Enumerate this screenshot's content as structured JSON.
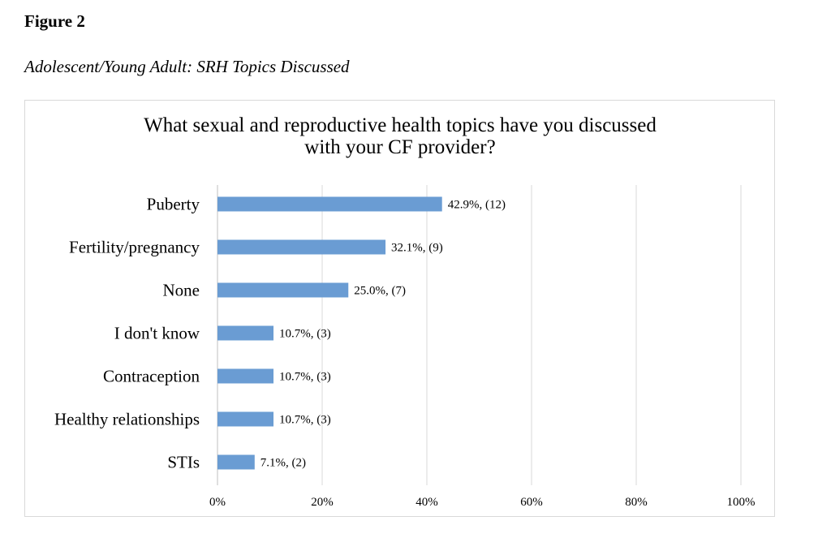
{
  "figure": {
    "label": "Figure 2",
    "caption": "Adolescent/Young Adult: SRH Topics Discussed"
  },
  "chart_data": {
    "type": "bar",
    "orientation": "horizontal",
    "title_lines": [
      "What sexual and reproductive health topics have you discussed",
      "with your CF provider?"
    ],
    "categories": [
      "Puberty",
      "Fertility/pregnancy",
      "None",
      "I don't know",
      "Contraception",
      "Healthy relationships",
      "STIs"
    ],
    "values": [
      42.9,
      32.1,
      25.0,
      10.7,
      10.7,
      10.7,
      7.1
    ],
    "data_labels": [
      "42.9%, (12)",
      "32.1%, (9)",
      "25.0%, (7)",
      "10.7%, (3)",
      "10.7%, (3)",
      "10.7%, (3)",
      "7.1%, (2)"
    ],
    "x_ticks": [
      0,
      20,
      40,
      60,
      80,
      100
    ],
    "x_tick_labels": [
      "0%",
      "20%",
      "40%",
      "60%",
      "80%",
      "100%"
    ],
    "xlim": [
      0,
      100
    ],
    "grid": "vertical",
    "legend": "none",
    "bar_color": "#6a9cd3",
    "grid_color": "#d9d9d9",
    "axis_color": "#bfbfbf"
  }
}
